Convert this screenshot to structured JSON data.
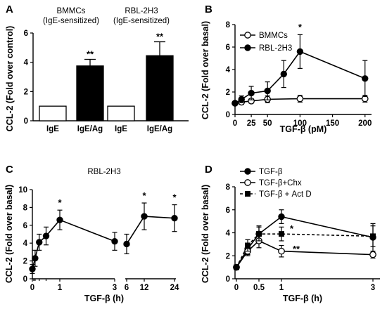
{
  "chart_data": [
    {
      "panel": "A",
      "type": "bar",
      "categories": [
        "IgE",
        "IgE/Ag",
        "IgE",
        "IgE/Ag"
      ],
      "values": [
        1.0,
        3.75,
        1.0,
        4.45
      ],
      "errors": [
        0,
        0.45,
        0,
        0.95
      ],
      "bar_colors": [
        "#ffffff",
        "#000000",
        "#ffffff",
        "#000000"
      ],
      "groups": [
        {
          "line1": "BMMCs",
          "line2": "(IgE-sensitized)"
        },
        {
          "line1": "RBL-2H3",
          "line2": "(IgE-sensitized)"
        }
      ],
      "significance": [
        "",
        "**",
        "",
        "**"
      ],
      "ylabel": "CCL-2  (Fold over control)",
      "ylim": [
        0,
        6
      ],
      "yticks": [
        0,
        2,
        4,
        6
      ]
    },
    {
      "panel": "B",
      "type": "line",
      "xlabel": "TGF-β (pM)",
      "ylabel": "CCL-2  (Fold over basal)",
      "xlim": [
        0,
        210
      ],
      "ylim": [
        0,
        8
      ],
      "xticks": [
        0,
        25,
        50,
        100,
        150,
        200
      ],
      "yticks": [
        0,
        2,
        4,
        6,
        8
      ],
      "legend_position": "top-left",
      "series": [
        {
          "name": "BMMCs",
          "marker": "open-circle",
          "x": [
            0,
            10,
            25,
            50,
            100,
            200
          ],
          "y": [
            1.0,
            1.1,
            1.2,
            1.35,
            1.4,
            1.4
          ],
          "err": [
            0.1,
            0.2,
            0.2,
            0.3,
            0.3,
            0.3
          ]
        },
        {
          "name": "RBL-2H3",
          "marker": "filled-circle",
          "x": [
            0,
            10,
            25,
            50,
            75,
            100,
            200
          ],
          "y": [
            1.0,
            1.35,
            1.9,
            2.1,
            3.6,
            5.6,
            3.2
          ],
          "err": [
            0.1,
            0.3,
            0.6,
            0.8,
            1.2,
            1.5,
            1.6
          ]
        }
      ],
      "annotations": [
        {
          "x": 100,
          "y": 7.5,
          "text": "*"
        }
      ]
    },
    {
      "panel": "C",
      "type": "line",
      "title": "RBL-2H3",
      "xlabel": "TGF-β (h)",
      "ylabel": "CCL-2  (Fold over basal)",
      "ylim": [
        0,
        10
      ],
      "yticks": [
        0,
        2,
        4,
        6,
        8,
        10
      ],
      "xticks_left": [
        "0",
        "1",
        "3"
      ],
      "xticks_right": [
        "6",
        "12",
        "24"
      ],
      "series": [
        {
          "x": [
            0,
            0.1,
            0.25,
            0.5,
            1,
            3
          ],
          "y": [
            1.1,
            2.3,
            4.1,
            4.8,
            6.6,
            4.2
          ],
          "err": [
            0.5,
            0.9,
            0.9,
            1.0,
            1.1,
            1.0
          ]
        },
        {
          "x": [
            6,
            12,
            24
          ],
          "y": [
            3.9,
            7.0,
            6.8
          ],
          "err": [
            1.1,
            1.5,
            1.5
          ]
        }
      ],
      "annotations": [
        {
          "x": 1,
          "y": 8.5,
          "text": "*"
        },
        {
          "x": 12,
          "y": 9.3,
          "text": "*"
        },
        {
          "x": 24,
          "y": 9.1,
          "text": "*"
        }
      ]
    },
    {
      "panel": "D",
      "type": "line",
      "xlabel": "TGF-β (h)",
      "ylabel": "CCL-2  (Fold over basal)",
      "xlim": [
        0,
        3.1
      ],
      "ylim": [
        0,
        8
      ],
      "xticks": [
        0,
        0.5,
        1,
        3
      ],
      "yticks": [
        0,
        2,
        4,
        6,
        8
      ],
      "legend_position": "top-left",
      "series": [
        {
          "name": "TGF-β",
          "marker": "filled-circle",
          "dash": false,
          "x": [
            0,
            0.25,
            0.5,
            1,
            3
          ],
          "y": [
            1.0,
            2.6,
            3.9,
            5.4,
            3.6
          ],
          "err": [
            0.1,
            0.5,
            0.7,
            0.6,
            1.2
          ]
        },
        {
          "name": "TGF-β+Chx",
          "marker": "open-circle",
          "dash": false,
          "x": [
            0,
            0.25,
            0.5,
            1,
            3
          ],
          "y": [
            1.0,
            2.4,
            3.3,
            2.4,
            2.1
          ],
          "err": [
            0.1,
            0.4,
            0.6,
            0.5,
            0.3
          ]
        },
        {
          "name": "TGF-β + Act D",
          "marker": "filled-square",
          "dash": true,
          "x": [
            0,
            0.25,
            0.5,
            1,
            3
          ],
          "y": [
            1.0,
            2.9,
            3.9,
            3.9,
            3.7
          ],
          "err": [
            0.1,
            0.5,
            0.6,
            0.6,
            0.9
          ]
        }
      ],
      "annotations": [
        {
          "x": 1,
          "y": 4.45,
          "text": "*",
          "dx": 12
        },
        {
          "x": 1,
          "y": 2.7,
          "text": "**",
          "dx": 16
        }
      ]
    }
  ]
}
